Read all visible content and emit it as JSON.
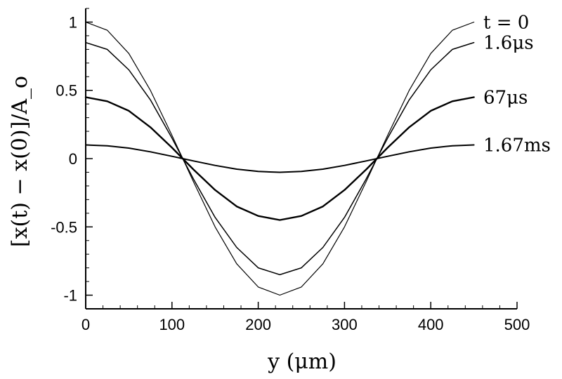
{
  "chart_data": {
    "type": "line",
    "xlabel": "y (μm)",
    "ylabel": "[x(t) − x(0)]/A_o",
    "xlim": [
      0,
      500
    ],
    "ylim": [
      -1.1,
      1.1
    ],
    "x_ticks": [
      0,
      100,
      200,
      300,
      400,
      500
    ],
    "x_tick_labels": [
      "0",
      "100",
      "200",
      "300",
      "400",
      "500"
    ],
    "y_ticks": [
      -1,
      -0.5,
      0,
      0.5,
      1
    ],
    "y_tick_labels": [
      "-1",
      "-0.5",
      "0",
      "0.5",
      "1"
    ],
    "grid": false,
    "x": [
      0,
      25,
      50,
      75,
      100,
      125,
      150,
      175,
      200,
      225,
      250,
      275,
      300,
      325,
      350,
      375,
      400,
      425,
      450
    ],
    "series": [
      {
        "name": "t = 0",
        "values": [
          1.0,
          0.94,
          0.77,
          0.5,
          0.17,
          -0.17,
          -0.5,
          -0.77,
          -0.94,
          -1.0,
          -0.94,
          -0.77,
          -0.5,
          -0.17,
          0.17,
          0.5,
          0.77,
          0.94,
          1.0
        ]
      },
      {
        "name": "1.6μs",
        "values": [
          0.85,
          0.8,
          0.65,
          0.43,
          0.15,
          -0.15,
          -0.43,
          -0.65,
          -0.8,
          -0.85,
          -0.8,
          -0.65,
          -0.43,
          -0.15,
          0.15,
          0.43,
          0.65,
          0.8,
          0.85
        ]
      },
      {
        "name": "67μs",
        "values": [
          0.45,
          0.42,
          0.35,
          0.23,
          0.08,
          -0.08,
          -0.23,
          -0.35,
          -0.42,
          -0.45,
          -0.42,
          -0.35,
          -0.23,
          -0.08,
          0.08,
          0.23,
          0.35,
          0.42,
          0.45
        ]
      },
      {
        "name": "1.67ms",
        "values": [
          0.1,
          0.094,
          0.077,
          0.05,
          0.017,
          -0.017,
          -0.05,
          -0.077,
          -0.094,
          -0.1,
          -0.094,
          -0.077,
          -0.05,
          -0.017,
          0.017,
          0.05,
          0.077,
          0.094,
          0.1
        ]
      }
    ],
    "curve_labels": [
      "t = 0",
      "1.6μs",
      "67μs",
      "1.67ms"
    ]
  }
}
